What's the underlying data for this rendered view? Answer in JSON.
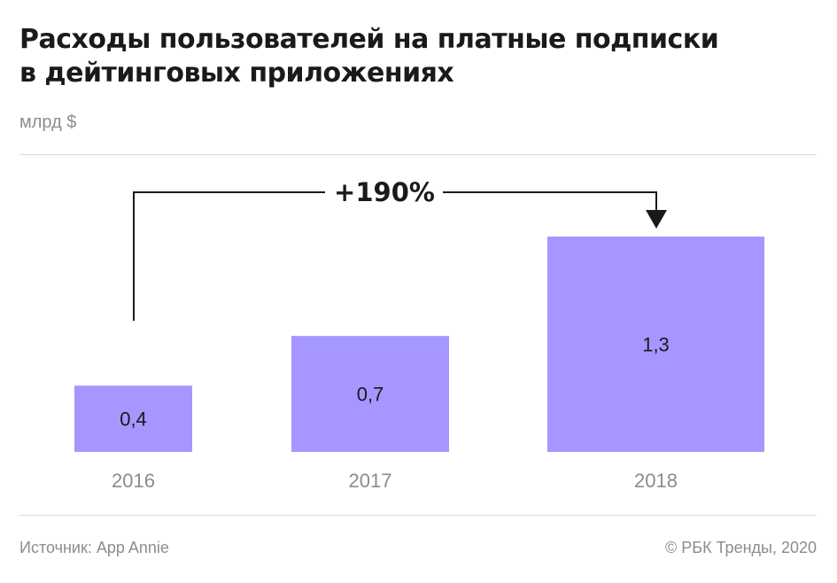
{
  "title_lines": [
    "Расходы пользователей на платные подписки",
    "в дейтинговых приложениях"
  ],
  "unit": "млрд $",
  "source": "Источник: App Annie",
  "copyright": "© РБК Тренды, 2020",
  "chart_data": {
    "type": "bar",
    "categories": [
      "2016",
      "2017",
      "2018"
    ],
    "values": [
      0.4,
      0.7,
      1.3
    ],
    "value_labels": [
      "0,4",
      "0,7",
      "1,3"
    ],
    "annotation": "+190%",
    "bar_color": "#a597ff",
    "ylim": [
      0,
      1.3
    ],
    "grid": false,
    "legend": false
  }
}
